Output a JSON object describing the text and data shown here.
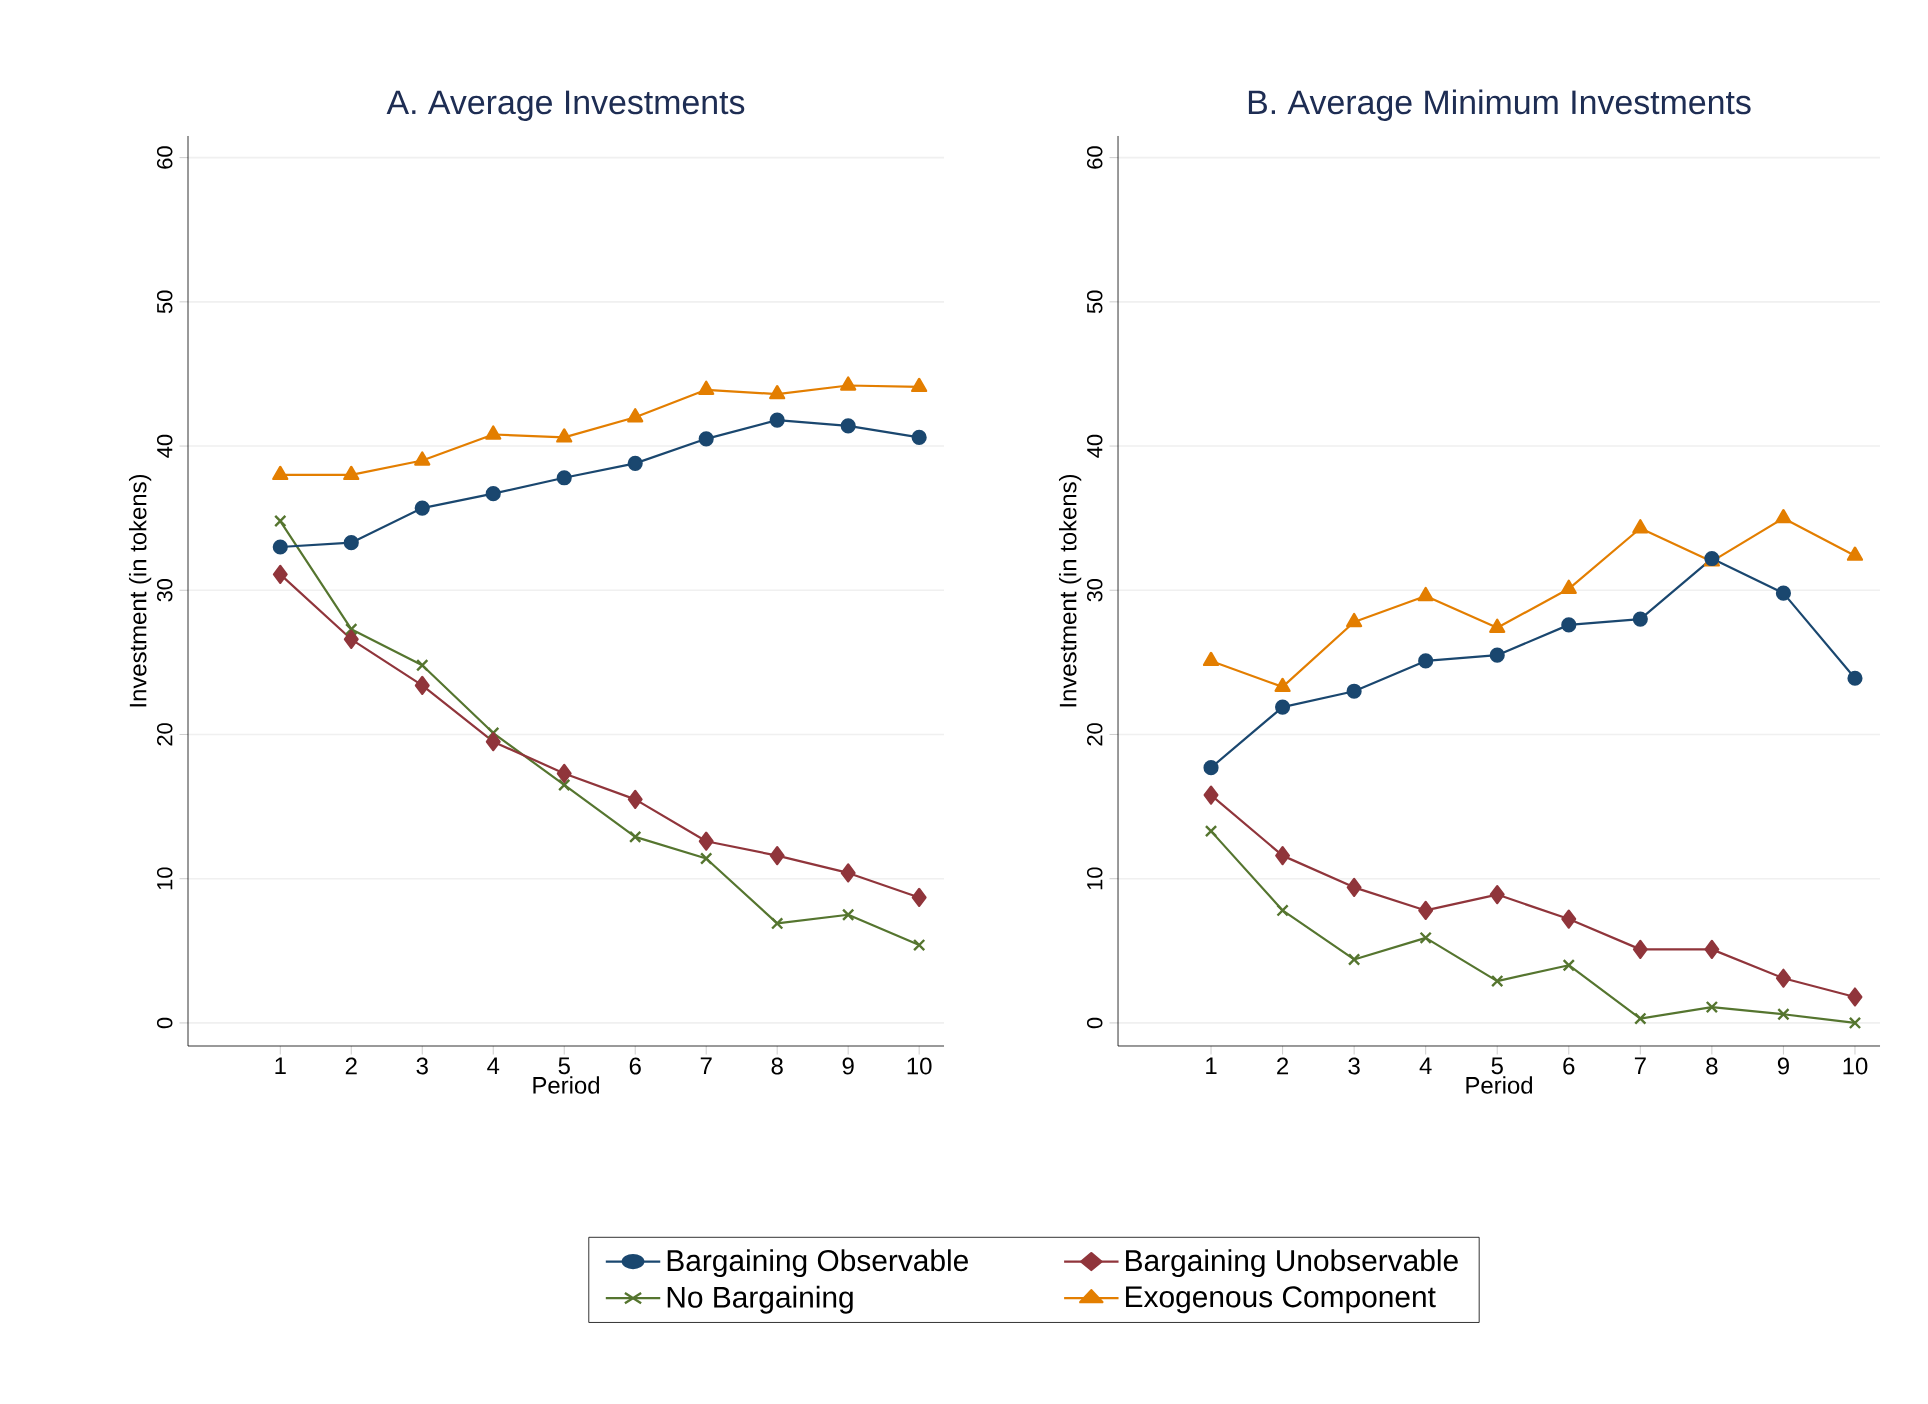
{
  "chart_data": [
    {
      "type": "line",
      "title": "A. Average Investments",
      "xlabel": "Period",
      "ylabel": "Investment (in tokens)",
      "x": [
        1,
        2,
        3,
        4,
        5,
        6,
        7,
        8,
        9,
        10
      ],
      "xlim": [
        -0.3,
        10.35
      ],
      "xticks": [
        1,
        2,
        3,
        4,
        5,
        6,
        7,
        8,
        9,
        10
      ],
      "ylim": [
        -1.6,
        61.5
      ],
      "yticks": [
        0,
        10,
        20,
        30,
        40,
        50,
        60
      ],
      "grid": "y",
      "legend": "bottom",
      "series": [
        {
          "name": "Bargaining Observable",
          "color": "#1a476f",
          "marker": "circle",
          "values": [
            33,
            33.3,
            35.7,
            36.7,
            37.8,
            38.8,
            40.5,
            41.8,
            41.4,
            40.6
          ]
        },
        {
          "name": "Bargaining Unobservable",
          "color": "#90353b",
          "marker": "diamond",
          "values": [
            31.1,
            26.6,
            23.4,
            19.5,
            17.3,
            15.5,
            12.6,
            11.6,
            10.4,
            8.7
          ]
        },
        {
          "name": "No Bargaining",
          "color": "#55752f",
          "marker": "cross",
          "values": [
            34.8,
            27.3,
            24.8,
            20.1,
            16.5,
            12.9,
            11.4,
            6.9,
            7.5,
            5.4
          ]
        },
        {
          "name": "Exogenous Component",
          "color": "#e37e00",
          "marker": "triangle",
          "values": [
            38,
            38,
            39,
            40.8,
            40.6,
            42,
            43.9,
            43.6,
            44.2,
            44.1
          ]
        }
      ]
    },
    {
      "type": "line",
      "title": "B. Average Minimum Investments",
      "xlabel": "Period",
      "ylabel": "Investment (in tokens)",
      "x": [
        1,
        2,
        3,
        4,
        5,
        6,
        7,
        8,
        9,
        10
      ],
      "xlim": [
        -0.3,
        10.35
      ],
      "xticks": [
        1,
        2,
        3,
        4,
        5,
        6,
        7,
        8,
        9,
        10
      ],
      "ylim": [
        -1.6,
        61.5
      ],
      "yticks": [
        0,
        10,
        20,
        30,
        40,
        50,
        60
      ],
      "grid": "y",
      "series": [
        {
          "color": "#1a476f",
          "marker": "circle",
          "values": [
            17.7,
            21.9,
            23,
            25.1,
            25.5,
            27.6,
            28,
            32.2,
            29.8,
            23.9
          ]
        },
        {
          "color": "#90353b",
          "marker": "diamond",
          "values": [
            15.8,
            11.6,
            9.4,
            7.8,
            8.9,
            7.2,
            5.1,
            5.1,
            3.1,
            1.8
          ]
        },
        {
          "color": "#55752f",
          "marker": "cross",
          "values": [
            13.3,
            7.8,
            4.4,
            5.9,
            2.9,
            4,
            0.3,
            1.1,
            0.6,
            0
          ]
        },
        {
          "color": "#e37e00",
          "marker": "triangle",
          "values": [
            25.1,
            23.3,
            27.8,
            29.6,
            27.4,
            30.1,
            34.3,
            32,
            35,
            32.4
          ]
        }
      ]
    }
  ]
}
